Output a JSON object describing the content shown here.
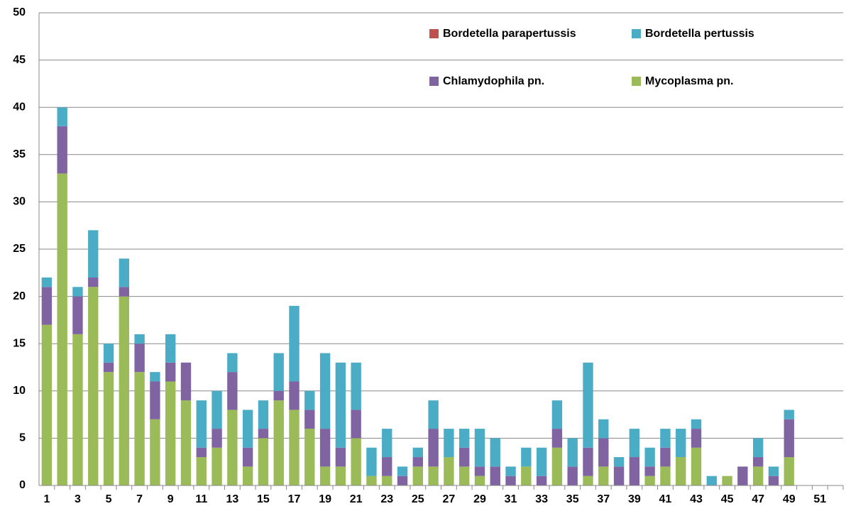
{
  "chart_data": {
    "type": "stacked_bar",
    "categories": [
      "1",
      null,
      "3",
      null,
      "5",
      null,
      "7",
      null,
      "9",
      null,
      "11",
      null,
      "13",
      null,
      "15",
      null,
      "17",
      null,
      "19",
      null,
      "21",
      null,
      "23",
      null,
      "25",
      null,
      "27",
      null,
      "29",
      null,
      "31",
      null,
      "33",
      null,
      "35",
      null,
      "37",
      null,
      "39",
      null,
      "41",
      null,
      "43",
      null,
      "45",
      null,
      "47",
      null,
      "49",
      null,
      "51",
      null
    ],
    "series": [
      {
        "name": "Bordetella parapertussis",
        "color": "#c0504d",
        "values": [
          0,
          0,
          0,
          0,
          0,
          0,
          0,
          0,
          0,
          0,
          0,
          0,
          0,
          0,
          0,
          0,
          0,
          0,
          0,
          0,
          0,
          0,
          0,
          0,
          0,
          0,
          0,
          0,
          0,
          0,
          0,
          0,
          0,
          0,
          0,
          0,
          0,
          0,
          0,
          0,
          0,
          0,
          0,
          0,
          0,
          0,
          0,
          0,
          0,
          0,
          0,
          0
        ]
      },
      {
        "name": "Bordetella pertussis",
        "color": "#4bacc6",
        "values": [
          1,
          2,
          1,
          5,
          2,
          3,
          1,
          1,
          3,
          0,
          5,
          4,
          2,
          4,
          3,
          4,
          8,
          2,
          8,
          9,
          5,
          3,
          3,
          1,
          1,
          3,
          3,
          2,
          4,
          3,
          1,
          2,
          3,
          3,
          3,
          9,
          2,
          1,
          3,
          2,
          2,
          3,
          1,
          1,
          0,
          0,
          2,
          1,
          1,
          0,
          0,
          0
        ]
      },
      {
        "name": "Chlamydophila pn.",
        "color": "#8064a2",
        "values": [
          4,
          5,
          4,
          1,
          1,
          1,
          3,
          4,
          2,
          4,
          1,
          2,
          4,
          2,
          1,
          1,
          3,
          2,
          4,
          2,
          3,
          0,
          2,
          1,
          1,
          4,
          0,
          2,
          1,
          2,
          1,
          0,
          1,
          2,
          2,
          3,
          3,
          2,
          3,
          1,
          2,
          0,
          2,
          0,
          0,
          2,
          1,
          1,
          4,
          0,
          0,
          0
        ]
      },
      {
        "name": "Mycoplasma pn.",
        "color": "#9bbb59",
        "values": [
          17,
          33,
          16,
          21,
          12,
          20,
          12,
          7,
          11,
          9,
          3,
          4,
          8,
          2,
          5,
          9,
          8,
          6,
          2,
          2,
          5,
          1,
          1,
          0,
          2,
          2,
          3,
          2,
          1,
          0,
          0,
          2,
          0,
          4,
          0,
          1,
          2,
          0,
          0,
          1,
          2,
          3,
          4,
          0,
          1,
          0,
          2,
          0,
          3,
          0,
          0,
          0
        ]
      }
    ],
    "stack_order": [
      "Mycoplasma pn.",
      "Chlamydophila pn.",
      "Bordetella pertussis",
      "Bordetella parapertussis"
    ],
    "ylim": [
      0,
      50
    ],
    "yticks": [
      0,
      5,
      10,
      15,
      20,
      25,
      30,
      35,
      40,
      45,
      50
    ],
    "grid": true,
    "legend": "top-right"
  }
}
